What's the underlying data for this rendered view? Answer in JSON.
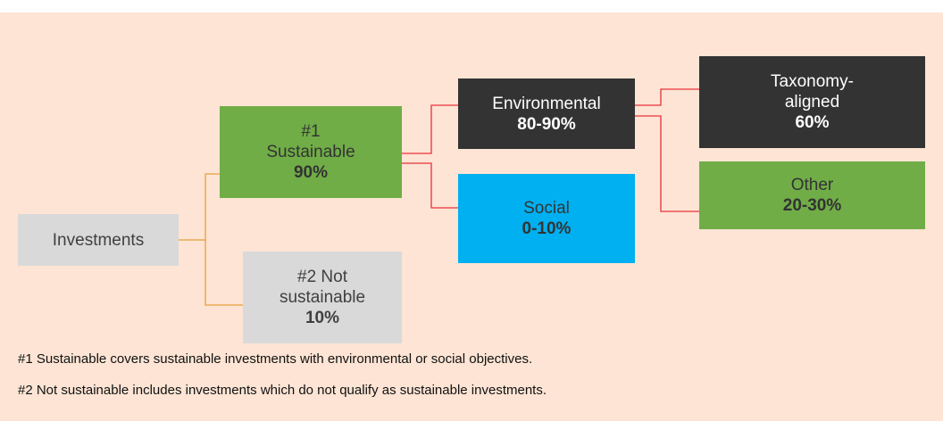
{
  "nodes": [
    {
      "lines": [
        "Investments"
      ]
    },
    {
      "lines": [
        "#1",
        "Sustainable"
      ],
      "value": "90%"
    },
    {
      "lines": [
        "#2 Not",
        "sustainable"
      ],
      "value": "10%"
    },
    {
      "lines": [
        "Environmental"
      ],
      "value": "80-90%"
    },
    {
      "lines": [
        "Social"
      ],
      "value": "0-10%"
    },
    {
      "lines": [
        "Taxonomy-",
        "aligned"
      ],
      "value": "60%"
    },
    {
      "lines": [
        "Other"
      ],
      "value": "20-30%"
    }
  ],
  "notes": [
    "#1 Sustainable covers sustainable investments with environmental or social objectives.",
    "#2 Not sustainable includes investments which do not qualify as sustainable investments."
  ]
}
